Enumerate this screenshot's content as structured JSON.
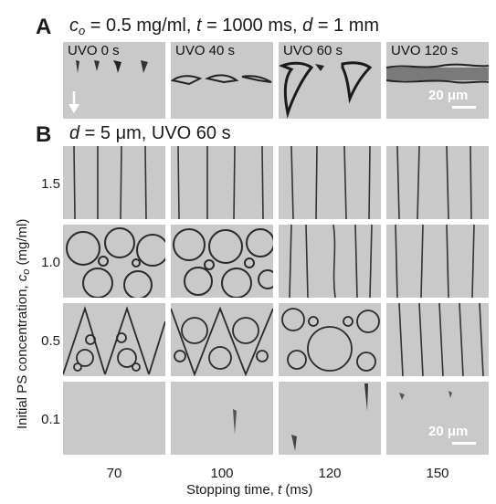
{
  "panel_a": {
    "letter": "A",
    "header": {
      "c": "c",
      "c_sub": "o",
      "eq1": " = 0.5 mg/ml, ",
      "t": "t",
      "eq2": " = 1000 ms, ",
      "d": "d",
      "eq3": " = 1 mm"
    },
    "tiles": [
      "UVO 0 s",
      "UVO 40 s",
      "UVO 60 s",
      "UVO 120 s"
    ],
    "scale_label": "20 μm"
  },
  "panel_b": {
    "letter": "B",
    "header": {
      "d": "d",
      "rest": " = 5 μm, UVO 60 s"
    },
    "y_axis": {
      "prefix": "Initial PS concentration, ",
      "c": "c",
      "c_sub": "o",
      "suffix": " (mg/ml)"
    },
    "row_labels": [
      "1.5",
      "1.0",
      "0.5",
      "0.1"
    ],
    "col_labels": [
      "70",
      "100",
      "120",
      "150"
    ],
    "x_axis": {
      "prefix": "Stopping time, ",
      "t": "t",
      "suffix": " (ms)"
    },
    "scale_label": "20 μm"
  },
  "colors": {
    "tile_background": "#c9c9c9",
    "ink": "#1a1a1a",
    "scale_bar": "#ffffff"
  }
}
